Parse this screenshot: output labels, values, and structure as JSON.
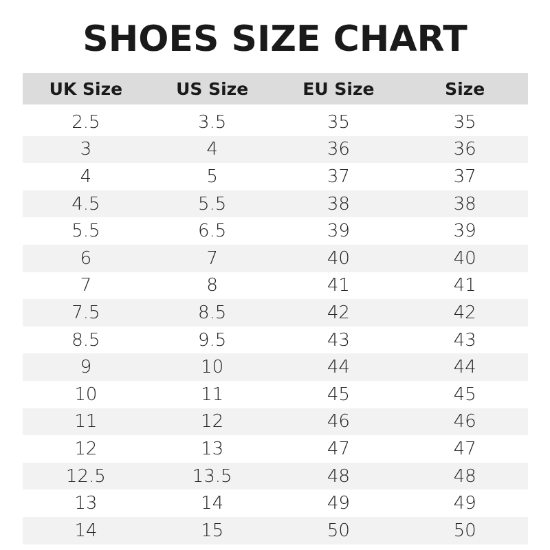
{
  "title": "SHOES SIZE CHART",
  "table": {
    "headers": [
      "UK Size",
      "US Size",
      "EU Size",
      "Size"
    ],
    "rows": [
      [
        "2.5",
        "3.5",
        "35",
        "35"
      ],
      [
        "3",
        "4",
        "36",
        "36"
      ],
      [
        "4",
        "5",
        "37",
        "37"
      ],
      [
        "4.5",
        "5.5",
        "38",
        "38"
      ],
      [
        "5.5",
        "6.5",
        "39",
        "39"
      ],
      [
        "6",
        "7",
        "40",
        "40"
      ],
      [
        "7",
        "8",
        "41",
        "41"
      ],
      [
        "7.5",
        "8.5",
        "42",
        "42"
      ],
      [
        "8.5",
        "9.5",
        "43",
        "43"
      ],
      [
        "9",
        "10",
        "44",
        "44"
      ],
      [
        "10",
        "11",
        "45",
        "45"
      ],
      [
        "11",
        "12",
        "46",
        "46"
      ],
      [
        "12",
        "13",
        "47",
        "47"
      ],
      [
        "12.5",
        "13.5",
        "48",
        "48"
      ],
      [
        "13",
        "14",
        "49",
        "49"
      ],
      [
        "14",
        "15",
        "50",
        "50"
      ]
    ]
  },
  "colors": {
    "header_bg": "#dcdcdc",
    "alt_row_bg": "#f2f2f2",
    "text": "#1a1a1a"
  }
}
